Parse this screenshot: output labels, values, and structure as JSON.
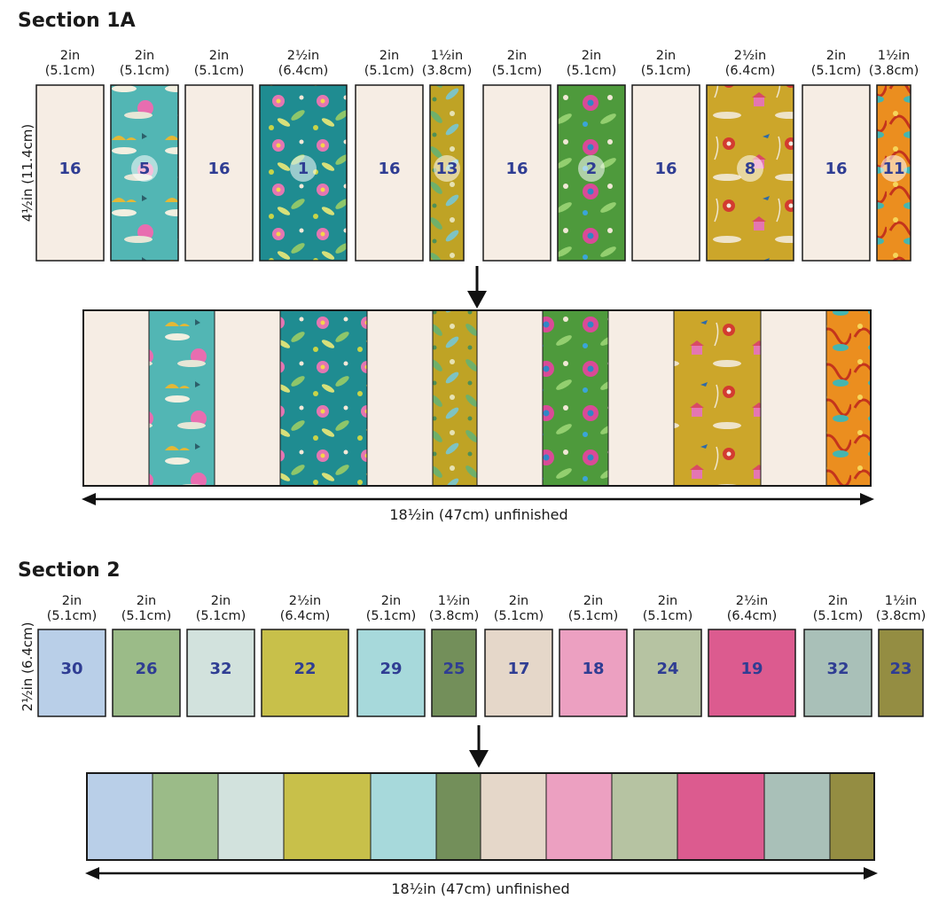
{
  "section_1a": {
    "title": "Section 1A",
    "height_label": "4½in (11.4cm)",
    "total_label": "18½in (47cm) unfinished",
    "strips": [
      {
        "width_in": "2in",
        "width_cm": "(5.1cm)",
        "number": "16",
        "fabric": "cream"
      },
      {
        "width_in": "2in",
        "width_cm": "(5.1cm)",
        "number": "5",
        "fabric": "teal-clouds"
      },
      {
        "width_in": "2in",
        "width_cm": "(5.1cm)",
        "number": "16",
        "fabric": "cream"
      },
      {
        "width_in": "2½in",
        "width_cm": "(6.4cm)",
        "number": "1",
        "fabric": "teal-floral"
      },
      {
        "width_in": "2in",
        "width_cm": "(5.1cm)",
        "number": "16",
        "fabric": "cream"
      },
      {
        "width_in": "1½in",
        "width_cm": "(3.8cm)",
        "number": "13",
        "fabric": "mustard-leaf"
      },
      {
        "width_in": "2in",
        "width_cm": "(5.1cm)",
        "number": "16",
        "fabric": "cream"
      },
      {
        "width_in": "2in",
        "width_cm": "(5.1cm)",
        "number": "2",
        "fabric": "green-floral"
      },
      {
        "width_in": "2in",
        "width_cm": "(5.1cm)",
        "number": "16",
        "fabric": "cream"
      },
      {
        "width_in": "2½in",
        "width_cm": "(6.4cm)",
        "number": "8",
        "fabric": "mustard-pagoda"
      },
      {
        "width_in": "2in",
        "width_cm": "(5.1cm)",
        "number": "16",
        "fabric": "cream"
      },
      {
        "width_in": "1½in",
        "width_cm": "(3.8cm)",
        "number": "11",
        "fabric": "orange-flame"
      }
    ]
  },
  "section_2": {
    "title": "Section 2",
    "height_label": "2½in (6.4cm)",
    "total_label": "18½in (47cm) unfinished",
    "strips": [
      {
        "width_in": "2in",
        "width_cm": "(5.1cm)",
        "number": "30",
        "color": "#b9cfe8"
      },
      {
        "width_in": "2in",
        "width_cm": "(5.1cm)",
        "number": "26",
        "color": "#9bbb88"
      },
      {
        "width_in": "2in",
        "width_cm": "(5.1cm)",
        "number": "32",
        "color": "#d2e2dd"
      },
      {
        "width_in": "2½in",
        "width_cm": "(6.4cm)",
        "number": "22",
        "color": "#c8c04a"
      },
      {
        "width_in": "2in",
        "width_cm": "(5.1cm)",
        "number": "29",
        "color": "#a7d9db"
      },
      {
        "width_in": "1½in",
        "width_cm": "(3.8cm)",
        "number": "25",
        "color": "#738f5a"
      },
      {
        "width_in": "2in",
        "width_cm": "(5.1cm)",
        "number": "17",
        "color": "#e5d7c9"
      },
      {
        "width_in": "2in",
        "width_cm": "(5.1cm)",
        "number": "18",
        "color": "#eca0c1"
      },
      {
        "width_in": "2in",
        "width_cm": "(5.1cm)",
        "number": "24",
        "color": "#b6c3a2"
      },
      {
        "width_in": "2½in",
        "width_cm": "(6.4cm)",
        "number": "19",
        "color": "#dc5b8f"
      },
      {
        "width_in": "2in",
        "width_cm": "(5.1cm)",
        "number": "32",
        "color": "#a9c0b8"
      },
      {
        "width_in": "1½in",
        "width_cm": "(3.8cm)",
        "number": "23",
        "color": "#948d42"
      }
    ]
  },
  "colors": {
    "cream": "#f6ede4",
    "number_text": "#2f3d93",
    "outline": "#1a1a1a"
  }
}
